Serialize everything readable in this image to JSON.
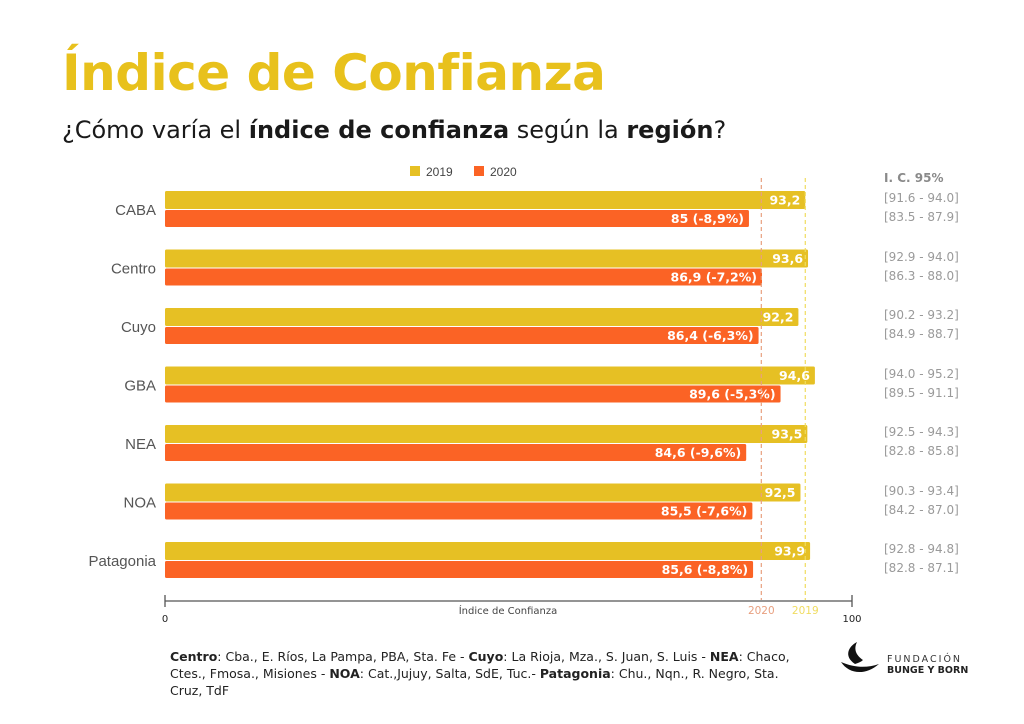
{
  "header": {
    "title": "Índice de Confianza",
    "subtitle_parts": [
      {
        "text": "¿Cómo varía el ",
        "bold": false
      },
      {
        "text": "índice de confianza",
        "bold": true
      },
      {
        "text": " según la ",
        "bold": false
      },
      {
        "text": "región",
        "bold": true
      },
      {
        "text": "?",
        "bold": false
      }
    ]
  },
  "colors": {
    "title": "#E8C11C",
    "series_2019": "#E6C024",
    "series_2020": "#FB6325",
    "ref_2020": "#E8A080",
    "ref_2019": "#F0DC60"
  },
  "chart_data": {
    "type": "bar",
    "orientation": "horizontal",
    "title": "Índice de Confianza",
    "xlabel": "Índice de Confianza",
    "ylabel": "",
    "xlim": [
      0,
      100
    ],
    "x_tick_labels": [
      "0",
      "100"
    ],
    "categories": [
      "CABA",
      "Centro",
      "Cuyo",
      "GBA",
      "NEA",
      "NOA",
      "Patagonia"
    ],
    "series": [
      {
        "name": "2019",
        "values": [
          93.2,
          93.6,
          92.2,
          94.6,
          93.5,
          92.5,
          93.9
        ],
        "labels": [
          "93,2",
          "93,6",
          "92,2",
          "94,6",
          "93,5",
          "92,5",
          "93,9"
        ]
      },
      {
        "name": "2020",
        "values": [
          85,
          86.9,
          86.4,
          89.6,
          84.6,
          85.5,
          85.6
        ],
        "labels": [
          "85 (-8,9%)",
          "86,9 (-7,2%)",
          "86,4 (-6,3%)",
          "89,6 (-5,3%)",
          "84,6 (-9,6%)",
          "85,5 (-7,6%)",
          "85,6 (-8,8%)"
        ]
      }
    ],
    "reference_lines": [
      {
        "label": "2020",
        "value": 86.8
      },
      {
        "label": "2019",
        "value": 93.2
      }
    ],
    "legend": {
      "entries": [
        "2019",
        "2020"
      ],
      "position": "top-center"
    },
    "grid": false
  },
  "confidence_intervals": {
    "header": "I. C. 95%",
    "rows": [
      [
        "[91.6 - 94.0]",
        "[83.5 - 87.9]"
      ],
      [
        "[92.9 - 94.0]",
        "[86.3 - 88.0]"
      ],
      [
        "[90.2 - 93.2]",
        "[84.9 - 88.7]"
      ],
      [
        "[94.0 - 95.2]",
        "[89.5 - 91.1]"
      ],
      [
        "[92.5 - 94.3]",
        "[82.8 - 85.8]"
      ],
      [
        "[90.3 - 93.4]",
        "[84.2 - 87.0]"
      ],
      [
        "[92.8 - 94.8]",
        "[82.8 - 87.1]"
      ]
    ]
  },
  "footnote_parts": [
    {
      "text": "Centro",
      "bold": true
    },
    {
      "text": ": Cba., E. Ríos, La Pampa, PBA, Sta. Fe - ",
      "bold": false
    },
    {
      "text": "Cuyo",
      "bold": true
    },
    {
      "text": ": La Rioja, Mza., S. Juan, S. Luis - ",
      "bold": false
    },
    {
      "text": "NEA",
      "bold": true
    },
    {
      "text": ": Chaco, Ctes., Fmosa., Misiones - ",
      "bold": false
    },
    {
      "text": "NOA",
      "bold": true
    },
    {
      "text": ": Cat.,Jujuy, Salta, SdE, Tuc.- ",
      "bold": false
    },
    {
      "text": "Patagonia",
      "bold": true
    },
    {
      "text": ": Chu., Nqn., R. Negro, Sta. Cruz, TdF",
      "bold": false
    }
  ],
  "logo": {
    "line1": "FUNDACIÓN",
    "line2": "BUNGE Y BORN"
  }
}
